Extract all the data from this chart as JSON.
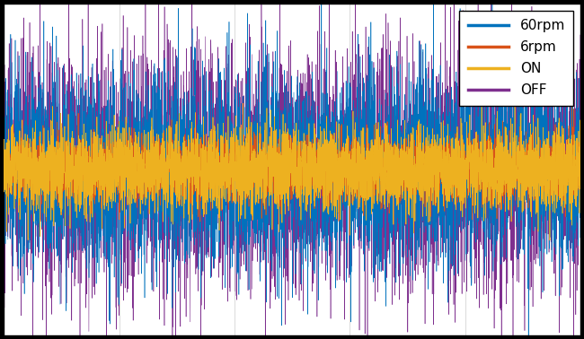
{
  "title": "",
  "xlabel": "",
  "ylabel": "",
  "xlim": [
    0,
    1
  ],
  "ylim": [
    -1.05,
    1.05
  ],
  "grid": true,
  "grid_color": "#cccccc",
  "legend_labels": [
    "60rpm",
    "6rpm",
    "ON",
    "OFF"
  ],
  "colors": {
    "60rpm": "#0072bd",
    "6rpm": "#d95319",
    "ON": "#edb120",
    "OFF": "#7e2f8e"
  },
  "n_points": 5000,
  "seed": 1,
  "figsize": [
    6.5,
    3.78
  ],
  "dpi": 100,
  "background_color": "#000000",
  "axes_facecolor": "#ffffff"
}
